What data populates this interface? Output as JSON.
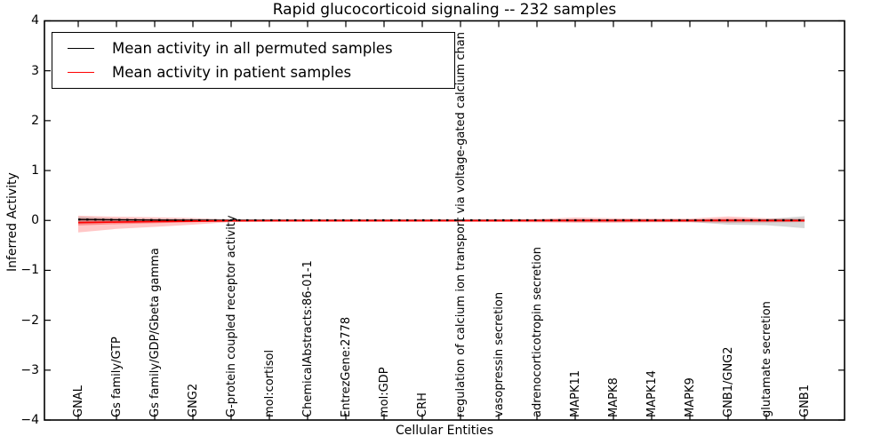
{
  "chart_data": {
    "type": "line",
    "title": "Rapid glucocorticoid signaling -- 232 samples",
    "xlabel": "Cellular Entities",
    "ylabel": "Inferred Activity",
    "ylim": [
      -4,
      4
    ],
    "ytick_labels": [
      "4",
      "3",
      "2",
      "1",
      "0",
      "−1",
      "−2",
      "−3",
      "−4"
    ],
    "ytick_values": [
      4,
      3,
      2,
      1,
      0,
      -1,
      -2,
      -3,
      -4
    ],
    "grid": false,
    "legend_position": "upper left",
    "categories": [
      "GNAL",
      "Gs family/GTP",
      "Gs family/GDP/Gbeta gamma",
      "GNG2",
      "G-protein coupled receptor activity",
      "mol:cortisol",
      "ChemicalAbstracts:86-01-1",
      "EntrezGene:2778",
      "mol:GDP",
      "CRH",
      "regulation of calcium ion transport via voltage-gated calcium chan",
      "vasopressin secretion",
      "adrenocorticotropin secretion",
      "MAPK11",
      "MAPK8",
      "MAPK14",
      "MAPK9",
      "GNB1/GNG2",
      "glutamate secretion",
      "GNB1"
    ],
    "series": [
      {
        "name": "Mean activity in all permuted samples",
        "color": "#000000",
        "style": "solid-with-dotted-overlay",
        "values": [
          0.019,
          0.013,
          0.009,
          0.006,
          0.004,
          0.004,
          0.004,
          0.004,
          0.004,
          0.004,
          0.004,
          0.004,
          0.004,
          0.004,
          0.004,
          0.004,
          0.004,
          0.004,
          0.004,
          0.004
        ]
      },
      {
        "name": "Mean activity in patient samples",
        "color": "#ff0000",
        "style": "solid",
        "values": [
          -0.042,
          -0.032,
          -0.022,
          -0.014,
          -0.008,
          -0.006,
          -0.005,
          -0.005,
          -0.005,
          -0.005,
          -0.005,
          -0.005,
          -0.005,
          -0.004,
          -0.004,
          -0.004,
          -0.004,
          -0.002,
          -0.004,
          -0.005
        ]
      }
    ],
    "bands": [
      {
        "name": "patient-band-outer",
        "color": "#ff0000",
        "opacity": 0.22,
        "hi": [
          0.095,
          0.075,
          0.065,
          0.05,
          0.022,
          0.018,
          0.018,
          0.018,
          0.018,
          0.018,
          0.018,
          0.022,
          0.028,
          0.06,
          0.045,
          0.038,
          0.038,
          0.08,
          0.045,
          0.038
        ],
        "lo": [
          -0.24,
          -0.17,
          -0.13,
          -0.085,
          -0.032,
          -0.028,
          -0.028,
          -0.028,
          -0.028,
          -0.028,
          -0.028,
          -0.032,
          -0.038,
          -0.048,
          -0.048,
          -0.038,
          -0.038,
          -0.048,
          -0.042,
          -0.032
        ]
      },
      {
        "name": "patient-band-inner",
        "color": "#ff0000",
        "opacity": 0.3,
        "hi": [
          0.04,
          0.03,
          0.024,
          0.016,
          0.01,
          0.008,
          0.008,
          0.008,
          0.008,
          0.008,
          0.008,
          0.01,
          0.012,
          0.025,
          0.02,
          0.016,
          0.016,
          0.035,
          0.02,
          0.016
        ],
        "lo": [
          -0.1,
          -0.075,
          -0.055,
          -0.035,
          -0.016,
          -0.012,
          -0.012,
          -0.012,
          -0.012,
          -0.012,
          -0.012,
          -0.016,
          -0.018,
          -0.022,
          -0.022,
          -0.018,
          -0.018,
          -0.022,
          -0.02,
          -0.016
        ]
      },
      {
        "name": "permuted-band-gray",
        "color": "#787878",
        "opacity": 0.3,
        "hi": [
          0.075,
          0.04,
          0.024,
          0.014,
          0.01,
          0.01,
          0.01,
          0.01,
          0.01,
          0.01,
          0.01,
          0.012,
          0.015,
          0.018,
          0.018,
          0.018,
          0.018,
          0.022,
          0.028,
          0.085
        ],
        "lo": [
          -0.065,
          -0.038,
          -0.024,
          -0.014,
          -0.01,
          -0.01,
          -0.01,
          -0.01,
          -0.01,
          -0.01,
          -0.01,
          -0.015,
          -0.02,
          -0.028,
          -0.028,
          -0.03,
          -0.032,
          -0.085,
          -0.095,
          -0.155
        ]
      }
    ]
  },
  "legend": {
    "entries": [
      {
        "label": "Mean activity in all permuted samples",
        "color": "#000000"
      },
      {
        "label": "Mean activity in patient samples",
        "color": "#ff0000"
      }
    ]
  }
}
